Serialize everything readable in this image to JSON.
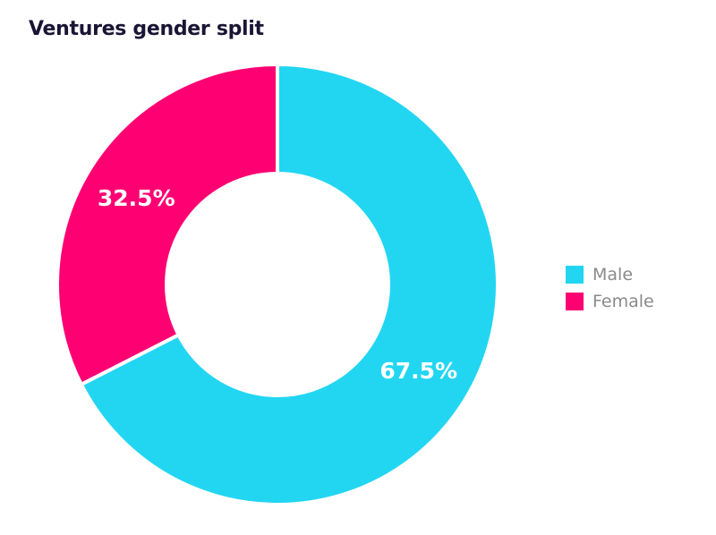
{
  "title": "Ventures gender split",
  "colors": {
    "male": "#22d6f2",
    "female": "#fe0072"
  },
  "chart_data": {
    "type": "pie",
    "variant": "donut",
    "title": "Ventures gender split",
    "categories": [
      "Male",
      "Female"
    ],
    "values": [
      67.5,
      32.5
    ],
    "labels": [
      "67.5%",
      "32.5%"
    ],
    "colors": [
      "#22d6f2",
      "#fe0072"
    ],
    "start_angle_deg": 0,
    "direction": "clockwise",
    "legend": "right"
  },
  "legend": {
    "items": [
      {
        "label": "Male",
        "color": "#22d6f2"
      },
      {
        "label": "Female",
        "color": "#fe0072"
      }
    ]
  }
}
